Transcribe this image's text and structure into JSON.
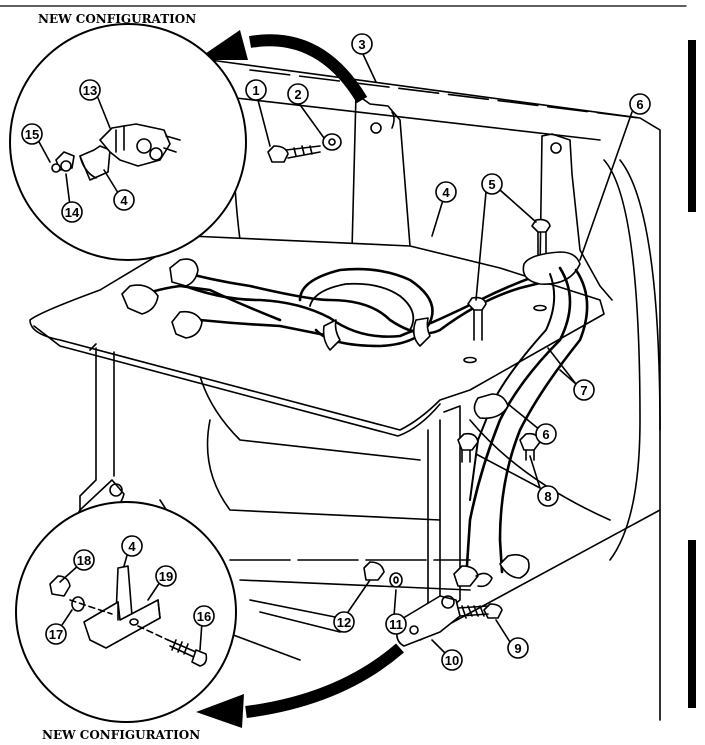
{
  "captions": {
    "top": "NEW CONFIGURATION",
    "bottom": "NEW CONFIGURATION"
  },
  "callouts": [
    "1",
    "2",
    "3",
    "4",
    "4",
    "4",
    "5",
    "6",
    "6",
    "7",
    "8",
    "9",
    "10",
    "11",
    "12",
    "13",
    "14",
    "15",
    "16",
    "17",
    "18",
    "19"
  ]
}
